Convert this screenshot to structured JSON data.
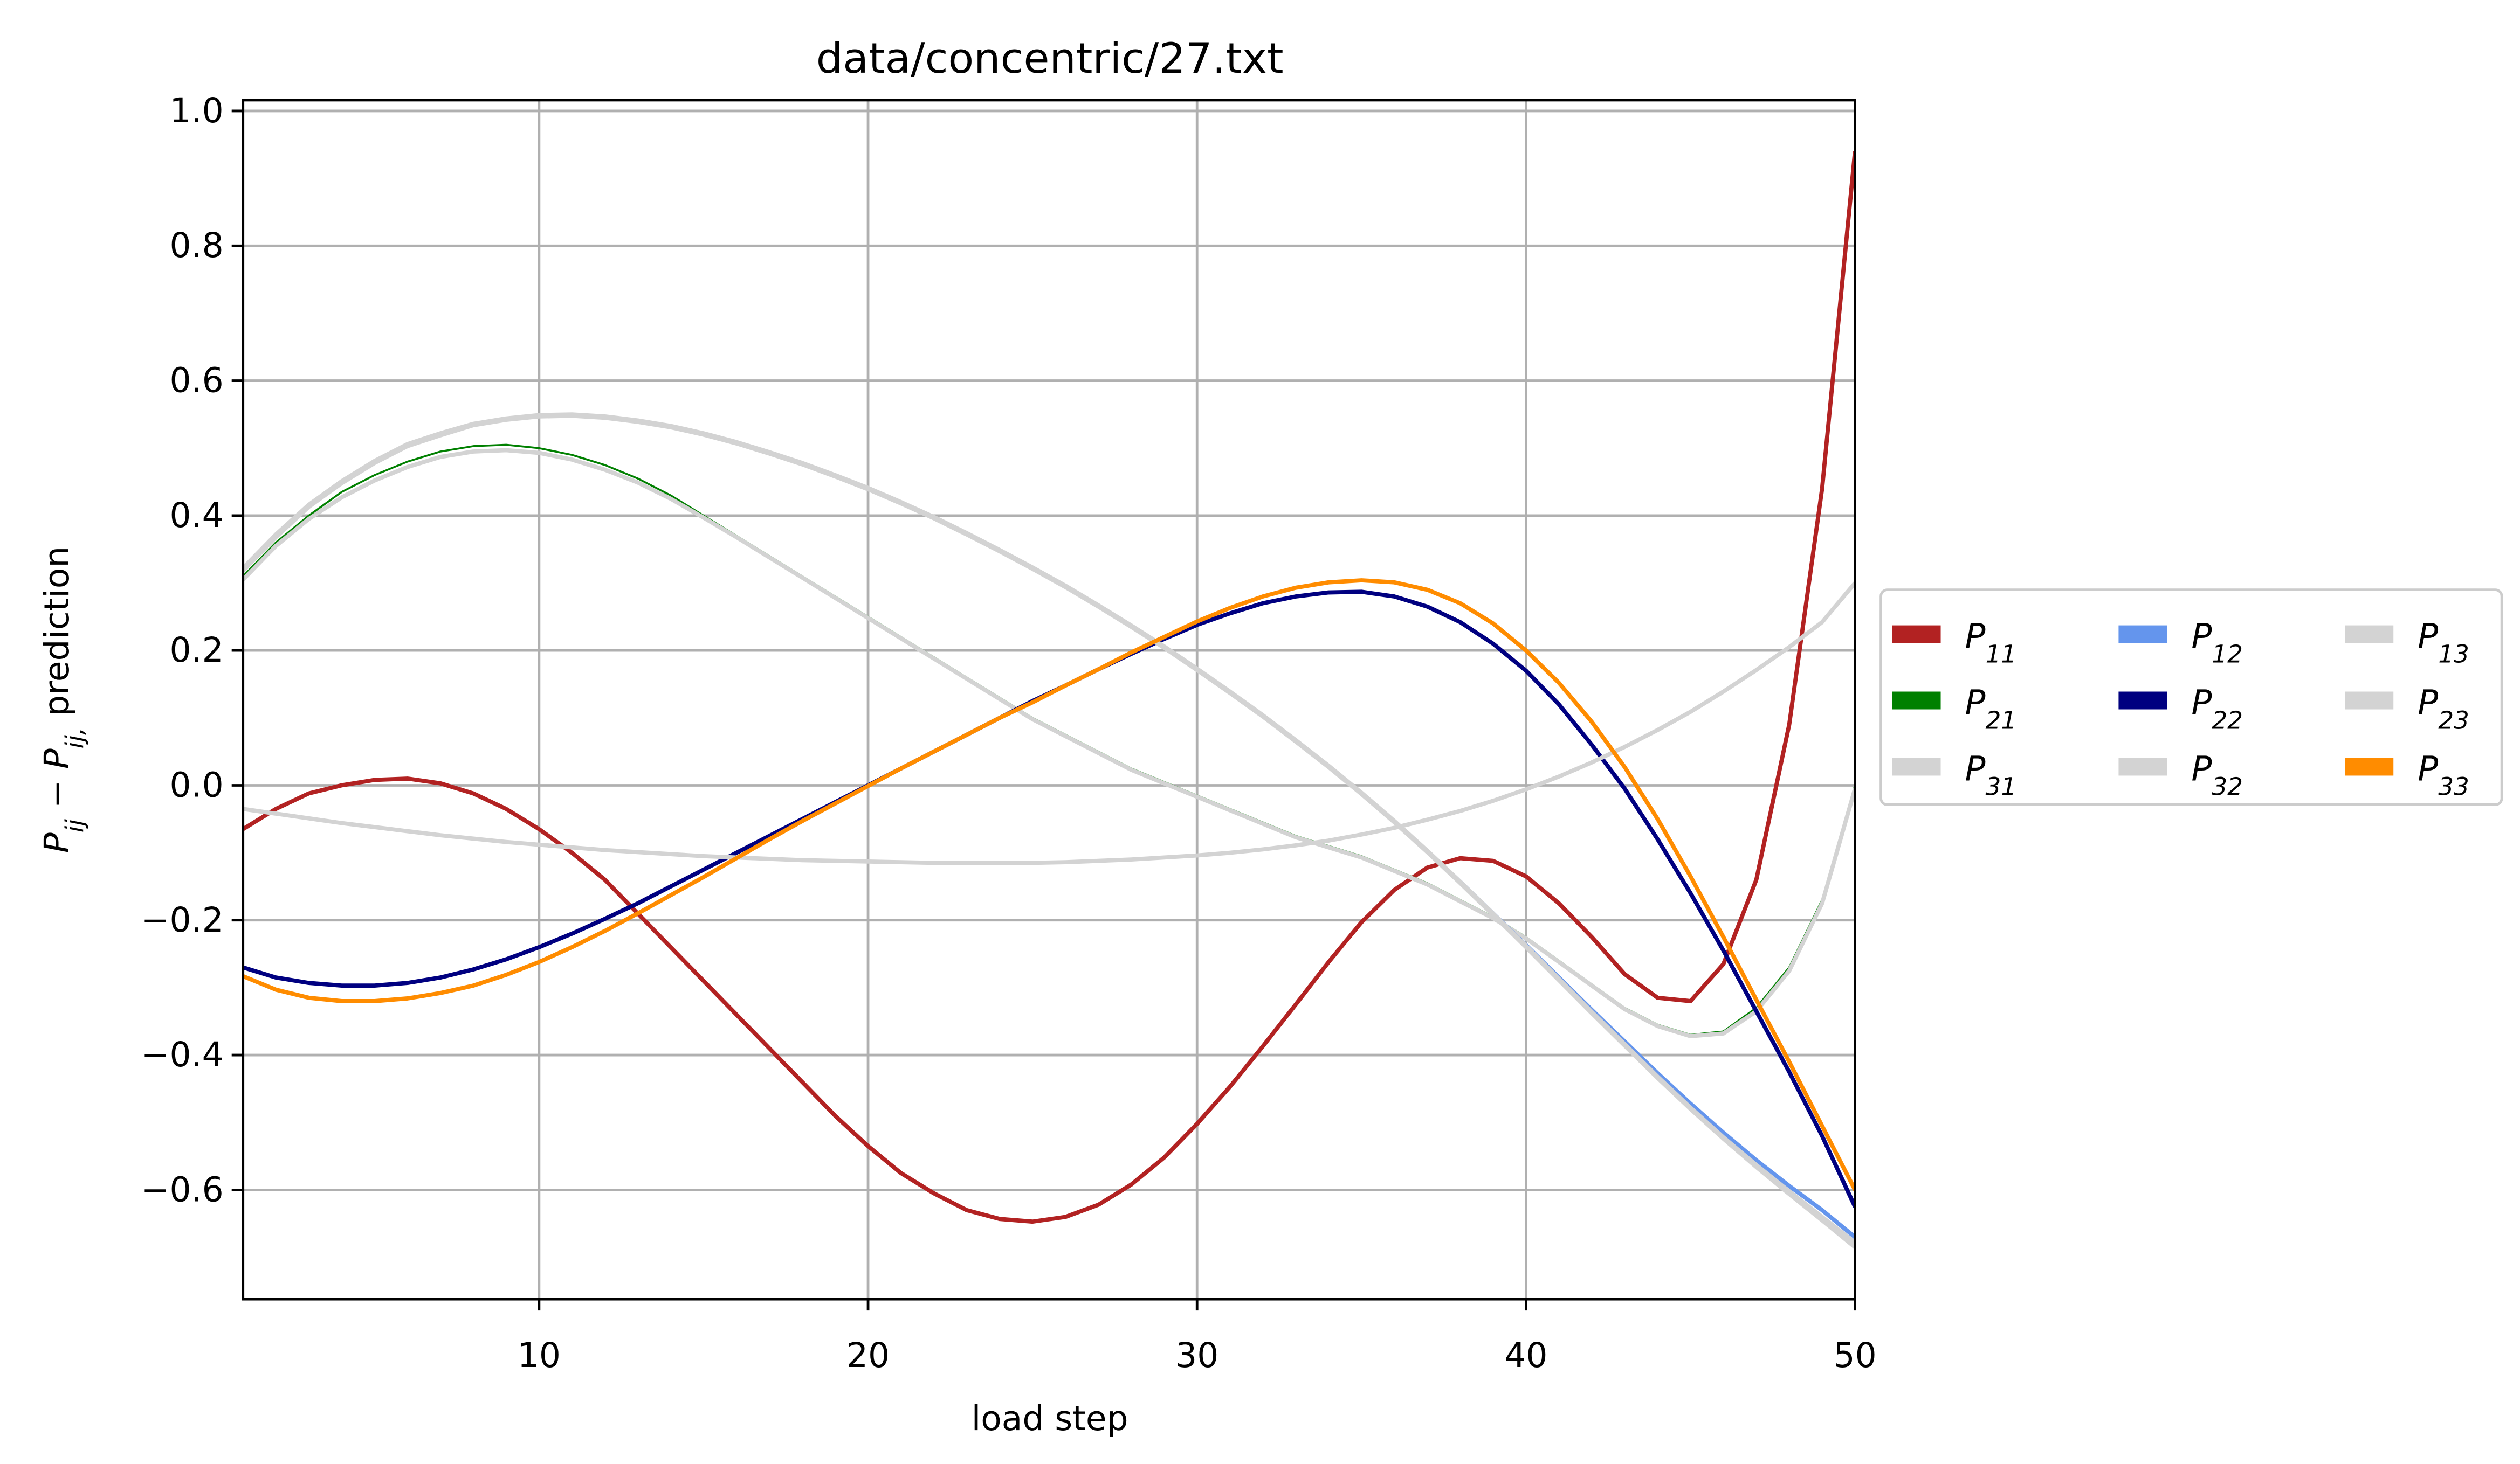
{
  "chart_data": {
    "type": "line",
    "title": "data/concentric/27.txt",
    "xlabel": "load step",
    "ylabel": "Pij − Pij, prediction",
    "x": [
      1,
      2,
      3,
      4,
      5,
      6,
      7,
      8,
      9,
      10,
      11,
      12,
      13,
      14,
      15,
      16,
      17,
      18,
      19,
      20,
      21,
      22,
      23,
      24,
      25,
      26,
      27,
      28,
      29,
      30,
      31,
      32,
      33,
      34,
      35,
      36,
      37,
      38,
      39,
      40,
      41,
      42,
      43,
      44,
      45,
      46,
      47,
      48,
      49,
      50
    ],
    "xlim": [
      1,
      50
    ],
    "xticks": [
      10,
      20,
      30,
      40,
      50
    ],
    "ylim": [
      -0.762,
      1.016
    ],
    "yticks": [
      {
        "value": -0.6,
        "label": "−0.6"
      },
      {
        "value": -0.4,
        "label": "−0.4"
      },
      {
        "value": -0.2,
        "label": "−0.2"
      },
      {
        "value": 0,
        "label": "0.0"
      },
      {
        "value": 0.2,
        "label": "0.2"
      },
      {
        "value": 0.4,
        "label": "0.4"
      },
      {
        "value": 0.6,
        "label": "0.6"
      },
      {
        "value": 0.8,
        "label": "0.8"
      },
      {
        "value": 1,
        "label": "1.0"
      }
    ],
    "grid": true,
    "legend": "outside right",
    "series": [
      {
        "name": "P11",
        "color": "#b22222",
        "values": [
          -0.065,
          -0.035,
          -0.012,
          0.0,
          0.008,
          0.01,
          0.003,
          -0.012,
          -0.035,
          -0.065,
          -0.1,
          -0.14,
          -0.19,
          -0.24,
          -0.29,
          -0.34,
          -0.39,
          -0.44,
          -0.49,
          -0.535,
          -0.575,
          -0.605,
          -0.63,
          -0.643,
          -0.647,
          -0.64,
          -0.622,
          -0.592,
          -0.552,
          -0.502,
          -0.447,
          -0.387,
          -0.325,
          -0.262,
          -0.203,
          -0.155,
          -0.122,
          -0.108,
          -0.112,
          -0.135,
          -0.175,
          -0.225,
          -0.28,
          -0.315,
          -0.32,
          -0.265,
          -0.14,
          0.09,
          0.44,
          0.94
        ]
      },
      {
        "name": "P21",
        "color": "#008000",
        "values": [
          0.31,
          0.36,
          0.4,
          0.435,
          0.46,
          0.48,
          0.495,
          0.503,
          0.505,
          0.5,
          0.49,
          0.475,
          0.455,
          0.43,
          0.4,
          0.37,
          0.34,
          0.31,
          0.28,
          0.25,
          0.22,
          0.19,
          0.16,
          0.13,
          0.1,
          0.075,
          0.05,
          0.025,
          0.005,
          -0.015,
          -0.035,
          -0.055,
          -0.075,
          -0.09,
          -0.105,
          -0.125,
          -0.145,
          -0.17,
          -0.195,
          -0.225,
          -0.26,
          -0.295,
          -0.33,
          -0.355,
          -0.37,
          -0.365,
          -0.33,
          -0.27,
          -0.17,
          0.0
        ]
      },
      {
        "name": "P31",
        "color": "#d3d3d3",
        "values": [
          0.305,
          0.355,
          0.395,
          0.427,
          0.452,
          0.472,
          0.487,
          0.495,
          0.497,
          0.493,
          0.483,
          0.468,
          0.449,
          0.425,
          0.397,
          0.368,
          0.338,
          0.308,
          0.278,
          0.248,
          0.218,
          0.188,
          0.158,
          0.128,
          0.098,
          0.073,
          0.048,
          0.023,
          0.003,
          -0.017,
          -0.037,
          -0.057,
          -0.077,
          -0.092,
          -0.107,
          -0.127,
          -0.147,
          -0.172,
          -0.197,
          -0.227,
          -0.262,
          -0.297,
          -0.332,
          -0.357,
          -0.372,
          -0.368,
          -0.335,
          -0.275,
          -0.175,
          -0.005
        ]
      },
      {
        "name": "P12",
        "color": "#6495ed",
        "values": [
          0.32,
          0.37,
          0.415,
          0.45,
          0.48,
          0.505,
          0.52,
          0.535,
          0.543,
          0.548,
          0.549,
          0.546,
          0.54,
          0.532,
          0.521,
          0.508,
          0.493,
          0.477,
          0.459,
          0.44,
          0.419,
          0.397,
          0.373,
          0.348,
          0.322,
          0.295,
          0.266,
          0.236,
          0.205,
          0.172,
          0.138,
          0.103,
          0.066,
          0.028,
          -0.012,
          -0.054,
          -0.098,
          -0.143,
          -0.19,
          -0.237,
          -0.285,
          -0.333,
          -0.38,
          -0.427,
          -0.472,
          -0.515,
          -0.556,
          -0.594,
          -0.63,
          -0.67
        ]
      },
      {
        "name": "P22",
        "color": "#000080",
        "values": [
          -0.27,
          -0.285,
          -0.293,
          -0.297,
          -0.297,
          -0.293,
          -0.285,
          -0.273,
          -0.258,
          -0.24,
          -0.22,
          -0.198,
          -0.175,
          -0.15,
          -0.125,
          -0.1,
          -0.075,
          -0.05,
          -0.025,
          0.0,
          0.025,
          0.05,
          0.075,
          0.1,
          0.125,
          0.148,
          0.172,
          0.195,
          0.217,
          0.238,
          0.255,
          0.27,
          0.28,
          0.286,
          0.287,
          0.28,
          0.265,
          0.242,
          0.21,
          0.17,
          0.12,
          0.06,
          -0.005,
          -0.08,
          -0.16,
          -0.245,
          -0.335,
          -0.425,
          -0.52,
          -0.625
        ]
      },
      {
        "name": "P32",
        "color": "#d3d3d3",
        "values": [
          0.318,
          0.368,
          0.413,
          0.448,
          0.478,
          0.503,
          0.519,
          0.534,
          0.542,
          0.547,
          0.548,
          0.545,
          0.539,
          0.531,
          0.52,
          0.507,
          0.492,
          0.476,
          0.458,
          0.439,
          0.418,
          0.396,
          0.372,
          0.347,
          0.321,
          0.294,
          0.265,
          0.235,
          0.204,
          0.171,
          0.137,
          0.102,
          0.065,
          0.027,
          -0.013,
          -0.055,
          -0.099,
          -0.145,
          -0.192,
          -0.24,
          -0.289,
          -0.338,
          -0.386,
          -0.434,
          -0.48,
          -0.524,
          -0.566,
          -0.606,
          -0.645,
          -0.685
        ]
      },
      {
        "name": "P13",
        "color": "#d3d3d3",
        "values": [
          0.322,
          0.372,
          0.416,
          0.451,
          0.481,
          0.506,
          0.522,
          0.536,
          0.544,
          0.549,
          0.55,
          0.547,
          0.541,
          0.533,
          0.522,
          0.509,
          0.494,
          0.478,
          0.46,
          0.441,
          0.42,
          0.398,
          0.374,
          0.349,
          0.323,
          0.296,
          0.267,
          0.237,
          0.206,
          0.173,
          0.139,
          0.104,
          0.067,
          0.029,
          -0.011,
          -0.053,
          -0.097,
          -0.143,
          -0.19,
          -0.238,
          -0.287,
          -0.336,
          -0.384,
          -0.432,
          -0.478,
          -0.522,
          -0.563,
          -0.602,
          -0.64,
          -0.678
        ]
      },
      {
        "name": "P23",
        "color": "#d3d3d3",
        "values": [
          -0.035,
          -0.042,
          -0.049,
          -0.056,
          -0.062,
          -0.068,
          -0.074,
          -0.079,
          -0.084,
          -0.088,
          -0.092,
          -0.096,
          -0.099,
          -0.102,
          -0.105,
          -0.107,
          -0.109,
          -0.111,
          -0.112,
          -0.113,
          -0.114,
          -0.115,
          -0.115,
          -0.115,
          -0.115,
          -0.114,
          -0.112,
          -0.11,
          -0.107,
          -0.104,
          -0.1,
          -0.095,
          -0.089,
          -0.082,
          -0.073,
          -0.063,
          -0.051,
          -0.038,
          -0.023,
          -0.006,
          0.013,
          0.034,
          0.057,
          0.082,
          0.109,
          0.139,
          0.171,
          0.205,
          0.242,
          0.3
        ]
      },
      {
        "name": "P33",
        "color": "#ff8c00",
        "values": [
          -0.283,
          -0.303,
          -0.315,
          -0.32,
          -0.32,
          -0.316,
          -0.308,
          -0.297,
          -0.281,
          -0.262,
          -0.24,
          -0.216,
          -0.19,
          -0.163,
          -0.136,
          -0.108,
          -0.08,
          -0.053,
          -0.027,
          -0.001,
          0.025,
          0.05,
          0.075,
          0.1,
          0.123,
          0.148,
          0.172,
          0.197,
          0.22,
          0.243,
          0.263,
          0.28,
          0.293,
          0.301,
          0.304,
          0.301,
          0.29,
          0.27,
          0.24,
          0.2,
          0.152,
          0.094,
          0.027,
          -0.05,
          -0.135,
          -0.225,
          -0.318,
          -0.41,
          -0.505,
          -0.6
        ]
      }
    ]
  }
}
